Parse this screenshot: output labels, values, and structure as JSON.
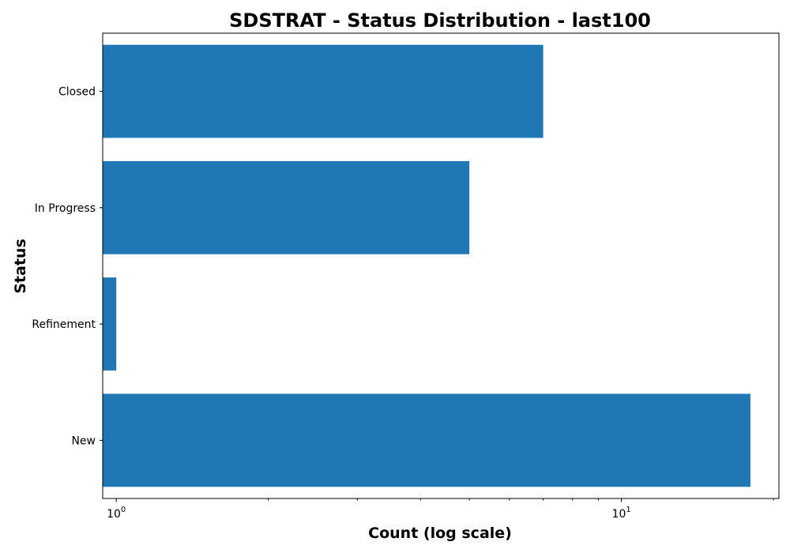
{
  "chart_data": {
    "type": "bar",
    "orientation": "horizontal",
    "title": "SDSTRAT - Status Distribution - last100",
    "xlabel": "Count (log scale)",
    "ylabel": "Status",
    "x_scale": "log",
    "xlim": [
      0.94,
      20.5
    ],
    "categories": [
      "New",
      "Refinement",
      "In Progress",
      "Closed"
    ],
    "values": [
      18,
      1,
      5,
      7
    ],
    "x_ticks": [
      {
        "value": 1,
        "base": "10",
        "exponent": "0"
      },
      {
        "value": 10,
        "base": "10",
        "exponent": "1"
      }
    ],
    "bar_color": "#1f77b4",
    "grid": false
  }
}
